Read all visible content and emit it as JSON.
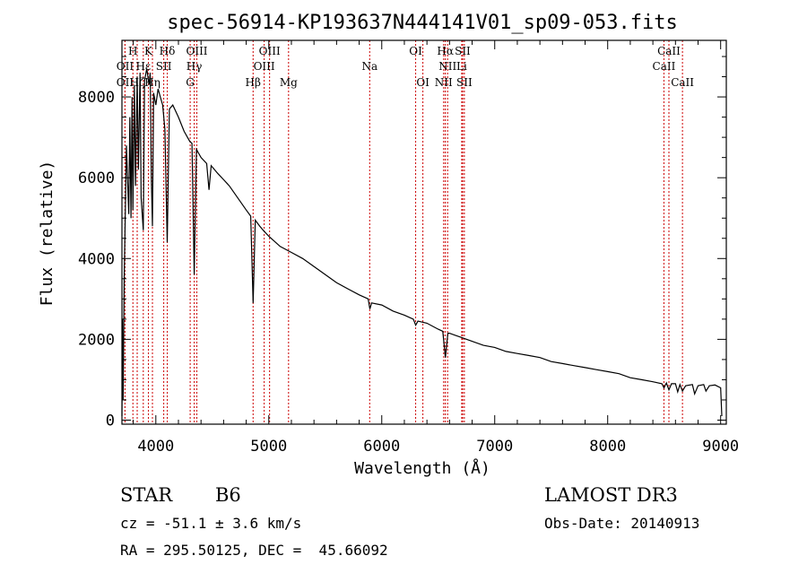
{
  "chart_data": {
    "type": "line",
    "title": "spec-56914-KP193637N444141V01_sp09-053.fits",
    "xlabel": "Wavelength (Å)",
    "ylabel": "Flux (relative)",
    "xlim": [
      3700,
      9050
    ],
    "ylim": [
      -100,
      9400
    ],
    "xticks": [
      4000,
      5000,
      6000,
      7000,
      8000,
      9000
    ],
    "yticks": [
      0,
      2000,
      4000,
      6000,
      8000
    ],
    "series": [
      {
        "name": "spectrum",
        "points": [
          [
            3700,
            100
          ],
          [
            3705,
            2500
          ],
          [
            3710,
            500
          ],
          [
            3720,
            3500
          ],
          [
            3740,
            6800
          ],
          [
            3760,
            5100
          ],
          [
            3770,
            7500
          ],
          [
            3780,
            5000
          ],
          [
            3790,
            8000
          ],
          [
            3797,
            5200
          ],
          [
            3810,
            8300
          ],
          [
            3820,
            5800
          ],
          [
            3835,
            8500
          ],
          [
            3845,
            6200
          ],
          [
            3860,
            8600
          ],
          [
            3870,
            5500
          ],
          [
            3889,
            4700
          ],
          [
            3900,
            8400
          ],
          [
            3920,
            8700
          ],
          [
            3940,
            8300
          ],
          [
            3950,
            8600
          ],
          [
            3960,
            6000
          ],
          [
            3970,
            4800
          ],
          [
            3980,
            8100
          ],
          [
            4000,
            7800
          ],
          [
            4020,
            8200
          ],
          [
            4040,
            8000
          ],
          [
            4060,
            7800
          ],
          [
            4080,
            7200
          ],
          [
            4101,
            4400
          ],
          [
            4120,
            7700
          ],
          [
            4150,
            7800
          ],
          [
            4200,
            7500
          ],
          [
            4250,
            7150
          ],
          [
            4300,
            6900
          ],
          [
            4320,
            6850
          ],
          [
            4340,
            3600
          ],
          [
            4360,
            6700
          ],
          [
            4400,
            6500
          ],
          [
            4450,
            6350
          ],
          [
            4471,
            5700
          ],
          [
            4490,
            6300
          ],
          [
            4550,
            6100
          ],
          [
            4600,
            5950
          ],
          [
            4650,
            5800
          ],
          [
            4700,
            5600
          ],
          [
            4750,
            5400
          ],
          [
            4800,
            5200
          ],
          [
            4840,
            5050
          ],
          [
            4861,
            2900
          ],
          [
            4880,
            4950
          ],
          [
            4920,
            4800
          ],
          [
            4950,
            4700
          ],
          [
            5000,
            4550
          ],
          [
            5100,
            4300
          ],
          [
            5200,
            4150
          ],
          [
            5300,
            4000
          ],
          [
            5400,
            3800
          ],
          [
            5500,
            3600
          ],
          [
            5600,
            3400
          ],
          [
            5700,
            3250
          ],
          [
            5800,
            3100
          ],
          [
            5880,
            3000
          ],
          [
            5895,
            2750
          ],
          [
            5910,
            2900
          ],
          [
            6000,
            2850
          ],
          [
            6100,
            2700
          ],
          [
            6200,
            2600
          ],
          [
            6280,
            2500
          ],
          [
            6300,
            2350
          ],
          [
            6320,
            2450
          ],
          [
            6400,
            2400
          ],
          [
            6500,
            2250
          ],
          [
            6540,
            2200
          ],
          [
            6563,
            1550
          ],
          [
            6585,
            2150
          ],
          [
            6600,
            2150
          ],
          [
            6700,
            2050
          ],
          [
            6800,
            1950
          ],
          [
            6900,
            1850
          ],
          [
            7000,
            1800
          ],
          [
            7100,
            1700
          ],
          [
            7200,
            1650
          ],
          [
            7300,
            1600
          ],
          [
            7400,
            1550
          ],
          [
            7500,
            1450
          ],
          [
            7600,
            1400
          ],
          [
            7700,
            1350
          ],
          [
            7800,
            1300
          ],
          [
            7900,
            1250
          ],
          [
            8000,
            1200
          ],
          [
            8100,
            1150
          ],
          [
            8200,
            1050
          ],
          [
            8300,
            1000
          ],
          [
            8400,
            950
          ],
          [
            8480,
            900
          ],
          [
            8498,
            800
          ],
          [
            8520,
            920
          ],
          [
            8542,
            750
          ],
          [
            8565,
            900
          ],
          [
            8600,
            900
          ],
          [
            8620,
            700
          ],
          [
            8640,
            880
          ],
          [
            8662,
            720
          ],
          [
            8690,
            850
          ],
          [
            8750,
            880
          ],
          [
            8770,
            650
          ],
          [
            8800,
            850
          ],
          [
            8850,
            880
          ],
          [
            8870,
            720
          ],
          [
            8900,
            850
          ],
          [
            8950,
            870
          ],
          [
            9000,
            800
          ],
          [
            9010,
            100
          ]
        ]
      }
    ],
    "lines": [
      {
        "label": "H",
        "wave": 3797,
        "row": 0
      },
      {
        "label": "K",
        "wave": 3934,
        "row": 0
      },
      {
        "label": "Hδ",
        "wave": 4101,
        "row": 0
      },
      {
        "label": "OIII",
        "wave": 4363,
        "row": 0
      },
      {
        "label": "OIII",
        "wave": 5007,
        "row": 0
      },
      {
        "label": "OI",
        "wave": 6300,
        "row": 0
      },
      {
        "label": "Hα",
        "wave": 6563,
        "row": 0
      },
      {
        "label": "SII",
        "wave": 6716,
        "row": 0
      },
      {
        "label": "CaII",
        "wave": 8542,
        "row": 0
      },
      {
        "label": "OII",
        "wave": 3727,
        "row": 1
      },
      {
        "label": "Hε",
        "wave": 3889,
        "row": 1
      },
      {
        "label": "SII",
        "wave": 4070,
        "row": 1
      },
      {
        "label": "Hγ",
        "wave": 4340,
        "row": 1
      },
      {
        "label": "OIII",
        "wave": 4959,
        "row": 1
      },
      {
        "label": "Na",
        "wave": 5893,
        "row": 1
      },
      {
        "label": "NII",
        "wave": 6583,
        "row": 1
      },
      {
        "label": "Li",
        "wave": 6708,
        "row": 1
      },
      {
        "label": "CaII",
        "wave": 8498,
        "row": 1
      },
      {
        "label": "OII",
        "wave": 3727,
        "row": 2
      },
      {
        "label": "Hζ",
        "wave": 3835,
        "row": 2
      },
      {
        "label": "Hη",
        "wave": 3970,
        "row": 2
      },
      {
        "label": "G",
        "wave": 4304,
        "row": 2
      },
      {
        "label": "Hβ",
        "wave": 4861,
        "row": 2
      },
      {
        "label": "Mg",
        "wave": 5175,
        "row": 2
      },
      {
        "label": "OI",
        "wave": 6364,
        "row": 2
      },
      {
        "label": "NII",
        "wave": 6548,
        "row": 2
      },
      {
        "label": "SII",
        "wave": 6731,
        "row": 2
      },
      {
        "label": "CaII",
        "wave": 8662,
        "row": 2
      }
    ]
  },
  "info": {
    "class_label": "STAR",
    "subclass": "B6",
    "survey": "LAMOST DR3",
    "cz": "cz = -51.1 ± 3.6 km/s",
    "obs_date": "Obs-Date: 20140913",
    "coords": "RA = 295.50125, DEC =  45.66092"
  },
  "colors": {
    "spectrum": "#000000",
    "line_marker": "#cc0000",
    "axes": "#000000"
  }
}
